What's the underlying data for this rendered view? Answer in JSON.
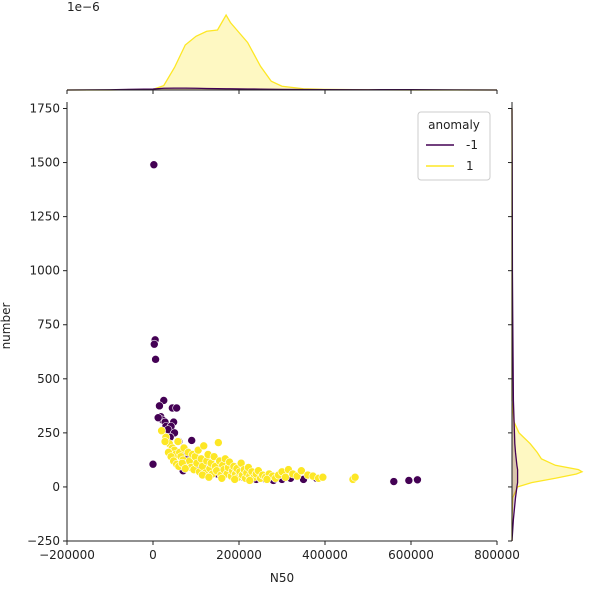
{
  "chart_data": {
    "type": "scatter",
    "subtype": "jointplot-with-marginal-kde",
    "xlabel": "N50",
    "ylabel": "number",
    "xlim": [
      -200000,
      800000
    ],
    "ylim": [
      -250,
      1780
    ],
    "xticks": [
      -200000,
      0,
      200000,
      400000,
      600000,
      800000
    ],
    "xtick_labels": [
      "−200000",
      "0",
      "200000",
      "400000",
      "600000",
      "800000"
    ],
    "yticks": [
      -250,
      0,
      250,
      500,
      750,
      1000,
      1250,
      1500,
      1750
    ],
    "ytick_labels": [
      "−250",
      "0",
      "250",
      "500",
      "750",
      "1000",
      "1250",
      "1500",
      "1750"
    ],
    "top_marginal_exponent_label": "1e−6",
    "legend": {
      "title": "anomaly",
      "placement": "upper right",
      "entries": [
        {
          "label": "-1",
          "color": "#440154"
        },
        {
          "label": "1",
          "color": "#fde725"
        }
      ]
    },
    "colors": {
      "-1": "#440154",
      "1": "#fde725"
    },
    "series": [
      {
        "name": "-1",
        "points": [
          [
            2000,
            1490
          ],
          [
            5000,
            680
          ],
          [
            3000,
            660
          ],
          [
            6000,
            590
          ],
          [
            0,
            105
          ],
          [
            25000,
            400
          ],
          [
            15000,
            375
          ],
          [
            18000,
            325
          ],
          [
            22000,
            310
          ],
          [
            28000,
            300
          ],
          [
            12000,
            320
          ],
          [
            30000,
            280
          ],
          [
            45000,
            365
          ],
          [
            55000,
            365
          ],
          [
            48000,
            300
          ],
          [
            42000,
            280
          ],
          [
            35000,
            265
          ],
          [
            50000,
            250
          ],
          [
            40000,
            230
          ],
          [
            60000,
            210
          ],
          [
            70000,
            150
          ],
          [
            80000,
            130
          ],
          [
            90000,
            215
          ],
          [
            95000,
            120
          ],
          [
            100000,
            100
          ],
          [
            110000,
            90
          ],
          [
            120000,
            110
          ],
          [
            140000,
            80
          ],
          [
            150000,
            60
          ],
          [
            160000,
            70
          ],
          [
            175000,
            60
          ],
          [
            180000,
            95
          ],
          [
            200000,
            50
          ],
          [
            210000,
            45
          ],
          [
            220000,
            40
          ],
          [
            240000,
            35
          ],
          [
            260000,
            38
          ],
          [
            280000,
            30
          ],
          [
            300000,
            35
          ],
          [
            320000,
            40
          ],
          [
            350000,
            35
          ],
          [
            380000,
            40
          ],
          [
            395000,
            45
          ],
          [
            560000,
            25
          ],
          [
            595000,
            30
          ],
          [
            615000,
            33
          ],
          [
            70000,
            75
          ]
        ]
      },
      {
        "name": "1",
        "points": [
          [
            30000,
            230
          ],
          [
            38000,
            200
          ],
          [
            45000,
            180
          ],
          [
            50000,
            170
          ],
          [
            52000,
            150
          ],
          [
            58000,
            210
          ],
          [
            62000,
            160
          ],
          [
            65000,
            140
          ],
          [
            70000,
            125
          ],
          [
            72000,
            180
          ],
          [
            78000,
            100
          ],
          [
            82000,
            160
          ],
          [
            85000,
            120
          ],
          [
            88000,
            90
          ],
          [
            92000,
            150
          ],
          [
            95000,
            80
          ],
          [
            98000,
            140
          ],
          [
            102000,
            110
          ],
          [
            105000,
            170
          ],
          [
            108000,
            70
          ],
          [
            112000,
            130
          ],
          [
            115000,
            95
          ],
          [
            118000,
            190
          ],
          [
            122000,
            65
          ],
          [
            125000,
            120
          ],
          [
            128000,
            150
          ],
          [
            132000,
            85
          ],
          [
            135000,
            110
          ],
          [
            138000,
            60
          ],
          [
            142000,
            140
          ],
          [
            145000,
            95
          ],
          [
            148000,
            75
          ],
          [
            152000,
            205
          ],
          [
            155000,
            120
          ],
          [
            158000,
            55
          ],
          [
            162000,
            100
          ],
          [
            165000,
            80
          ],
          [
            168000,
            130
          ],
          [
            172000,
            60
          ],
          [
            175000,
            90
          ],
          [
            178000,
            115
          ],
          [
            182000,
            50
          ],
          [
            185000,
            75
          ],
          [
            188000,
            95
          ],
          [
            192000,
            60
          ],
          [
            195000,
            85
          ],
          [
            198000,
            45
          ],
          [
            202000,
            70
          ],
          [
            205000,
            110
          ],
          [
            208000,
            55
          ],
          [
            212000,
            80
          ],
          [
            215000,
            40
          ],
          [
            218000,
            65
          ],
          [
            222000,
            90
          ],
          [
            225000,
            50
          ],
          [
            230000,
            70
          ],
          [
            235000,
            45
          ],
          [
            240000,
            60
          ],
          [
            245000,
            75
          ],
          [
            250000,
            40
          ],
          [
            255000,
            55
          ],
          [
            262000,
            45
          ],
          [
            270000,
            60
          ],
          [
            278000,
            50
          ],
          [
            285000,
            40
          ],
          [
            292000,
            55
          ],
          [
            300000,
            70
          ],
          [
            308000,
            45
          ],
          [
            315000,
            80
          ],
          [
            325000,
            60
          ],
          [
            335000,
            50
          ],
          [
            345000,
            75
          ],
          [
            360000,
            55
          ],
          [
            372000,
            50
          ],
          [
            385000,
            40
          ],
          [
            395000,
            45
          ],
          [
            465000,
            35
          ],
          [
            470000,
            45
          ],
          [
            20000,
            260
          ],
          [
            28000,
            210
          ],
          [
            36000,
            160
          ],
          [
            42000,
            140
          ],
          [
            48000,
            120
          ],
          [
            55000,
            105
          ],
          [
            60000,
            95
          ],
          [
            68000,
            110
          ],
          [
            75000,
            85
          ],
          [
            115000,
            55
          ],
          [
            130000,
            45
          ],
          [
            160000,
            40
          ],
          [
            190000,
            35
          ],
          [
            225000,
            30
          ],
          [
            265000,
            35
          ]
        ]
      }
    ],
    "marginal_x_kde": {
      "note": "densities in units of 1e-6",
      "x": [
        -200000,
        -100000,
        0,
        25000,
        50000,
        75000,
        100000,
        125000,
        150000,
        170000,
        180000,
        200000,
        220000,
        250000,
        275000,
        300000,
        350000,
        400000,
        500000,
        600000,
        700000,
        800000
      ],
      "-1": [
        0,
        0.02,
        0.08,
        0.14,
        0.15,
        0.15,
        0.14,
        0.12,
        0.11,
        0.1,
        0.1,
        0.09,
        0.08,
        0.07,
        0.06,
        0.05,
        0.04,
        0.03,
        0.02,
        0.03,
        0.01,
        0
      ],
      "1": [
        0,
        0,
        0.05,
        0.35,
        1.8,
        3.6,
        4.3,
        4.7,
        4.8,
        6.0,
        5.4,
        4.6,
        3.8,
        1.9,
        0.7,
        0.3,
        0.1,
        0.05,
        0.02,
        0,
        0,
        0
      ]
    },
    "marginal_y_kde": {
      "y": [
        -250,
        -150,
        -50,
        0,
        20,
        40,
        60,
        70,
        80,
        100,
        130,
        160,
        200,
        250,
        300,
        400,
        600,
        800,
        1000,
        1500,
        1750
      ],
      "-1": [
        0,
        0.02,
        0.05,
        0.07,
        0.08,
        0.08,
        0.08,
        0.08,
        0.08,
        0.07,
        0.06,
        0.05,
        0.04,
        0.035,
        0.03,
        0.02,
        0.015,
        0.01,
        0.006,
        0.003,
        0
      ],
      "1": [
        0,
        0,
        0.01,
        0.08,
        0.28,
        0.62,
        0.92,
        1.0,
        0.95,
        0.62,
        0.42,
        0.36,
        0.26,
        0.1,
        0.03,
        0,
        0,
        0,
        0,
        0,
        0
      ]
    }
  }
}
